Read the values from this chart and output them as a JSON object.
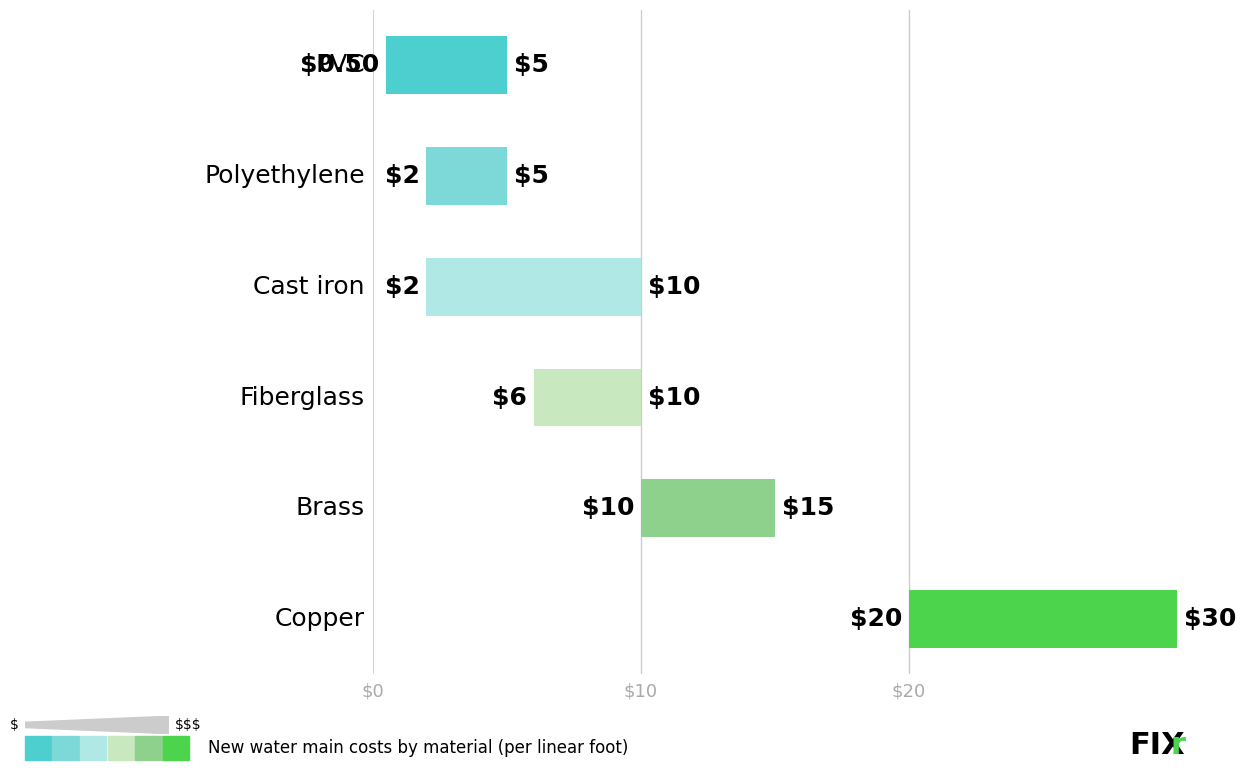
{
  "categories": [
    "PVC",
    "Polyethylene",
    "Cast iron",
    "Fiberglass",
    "Brass",
    "Copper"
  ],
  "bar_starts": [
    0.5,
    2,
    2,
    6,
    10,
    20
  ],
  "bar_ends": [
    5,
    5,
    10,
    10,
    15,
    30
  ],
  "bar_colors": [
    "#4dcfcf",
    "#7dd8d8",
    "#b0e8e5",
    "#c8e8c0",
    "#8dd18d",
    "#4cd44c"
  ],
  "label_left": [
    "$0.50",
    "$2",
    "$2",
    "$6",
    "$10",
    "$20"
  ],
  "label_right": [
    "$5",
    "$5",
    "$10",
    "$10",
    "$15",
    "$30"
  ],
  "xlim": [
    0,
    30
  ],
  "x_ticks": [
    0,
    10,
    20
  ],
  "x_tick_labels": [
    "$0",
    "$10",
    "$20"
  ],
  "background_color": "#ffffff",
  "bar_height": 0.52,
  "grid_color": "#cccccc",
  "label_fontsize": 18,
  "category_fontsize": 18,
  "tick_fontsize": 13,
  "legend_colors": [
    "#4dcfcf",
    "#7dd8d8",
    "#b0e8e5",
    "#c8e8c0",
    "#8dd18d",
    "#4cd44c"
  ],
  "legend_text": "New water main costs by material (per linear foot)"
}
